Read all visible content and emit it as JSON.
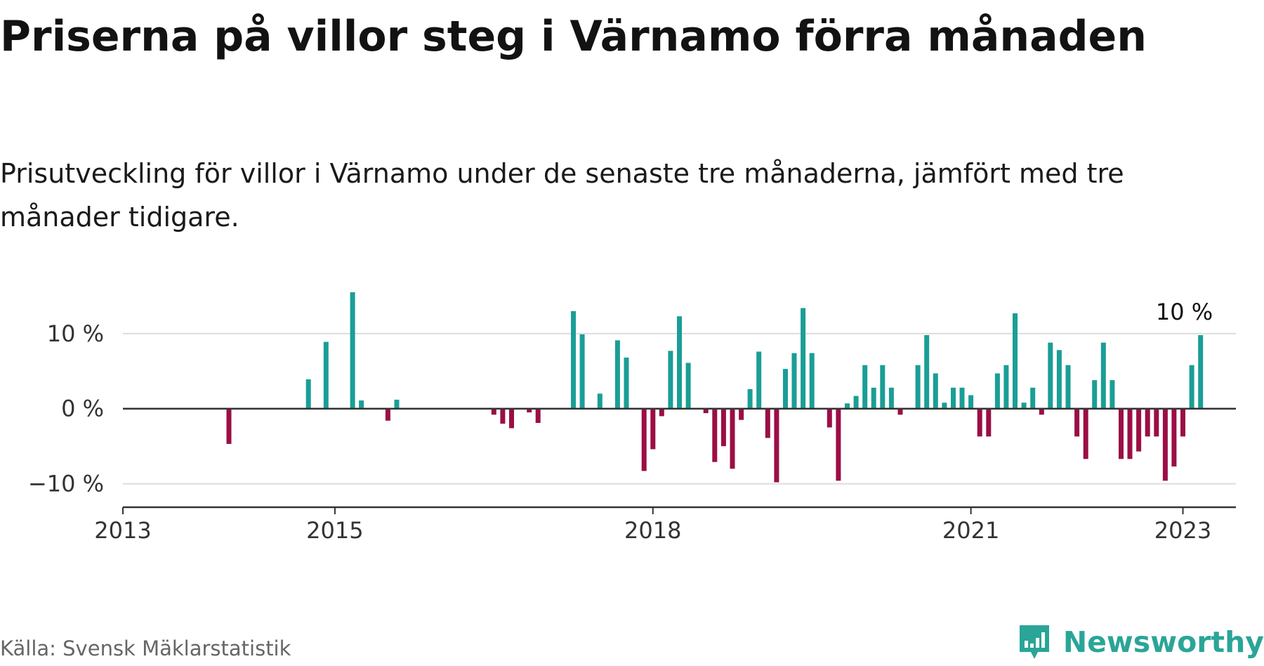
{
  "title": "Priserna på villor steg i Värnamo förra månaden",
  "subtitle": "Prisutveckling för villor i Värnamo under de senaste tre månaderna, jämfört med tre månader tidigare.",
  "source": "Källa: Svensk Mäklarstatistik",
  "brand": {
    "name": "Newsworthy",
    "icon": "newsworthy-logo-icon",
    "color": "#2aa598"
  },
  "colors": {
    "positive": "#1a9e96",
    "negative": "#9b0e45",
    "grid": "#dddddd",
    "zero_line": "#333333",
    "axis": "#333333"
  },
  "chart_data": {
    "type": "bar",
    "title": "Priserna på villor steg i Värnamo förra månaden",
    "xlabel": "",
    "ylabel": "",
    "ylim": [
      -12,
      17
    ],
    "xlim": [
      "2013-01",
      "2023-07"
    ],
    "grid": true,
    "y_ticks": [
      {
        "value": 10,
        "label": "10 %"
      },
      {
        "value": 0,
        "label": "0 %"
      },
      {
        "value": -10,
        "label": "−10 %"
      }
    ],
    "x_ticks": [
      {
        "date": "2013-01",
        "label": "2013"
      },
      {
        "date": "2015-01",
        "label": "2015"
      },
      {
        "date": "2018-01",
        "label": "2018"
      },
      {
        "date": "2021-01",
        "label": "2021"
      },
      {
        "date": "2023-01",
        "label": "2023"
      }
    ],
    "annotation": {
      "date": "2023-01",
      "label": "10 %"
    },
    "series": [
      {
        "values": [
          {
            "date": "2014-01",
            "value": -4.7
          },
          {
            "date": "2014-10",
            "value": 3.9
          },
          {
            "date": "2014-12",
            "value": 8.9
          },
          {
            "date": "2015-03",
            "value": 15.5
          },
          {
            "date": "2015-04",
            "value": 1.1
          },
          {
            "date": "2015-07",
            "value": -1.6
          },
          {
            "date": "2015-08",
            "value": 1.2
          },
          {
            "date": "2016-07",
            "value": -0.8
          },
          {
            "date": "2016-08",
            "value": -2.0
          },
          {
            "date": "2016-09",
            "value": -2.6
          },
          {
            "date": "2016-11",
            "value": -0.5
          },
          {
            "date": "2016-12",
            "value": -1.9
          },
          {
            "date": "2017-04",
            "value": 13.0
          },
          {
            "date": "2017-05",
            "value": 9.9
          },
          {
            "date": "2017-07",
            "value": 2.0
          },
          {
            "date": "2017-09",
            "value": 9.1
          },
          {
            "date": "2017-10",
            "value": 6.8
          },
          {
            "date": "2017-12",
            "value": -8.3
          },
          {
            "date": "2018-01",
            "value": -5.4
          },
          {
            "date": "2018-02",
            "value": -1.0
          },
          {
            "date": "2018-03",
            "value": 7.7
          },
          {
            "date": "2018-04",
            "value": 12.3
          },
          {
            "date": "2018-05",
            "value": 6.1
          },
          {
            "date": "2018-07",
            "value": -0.6
          },
          {
            "date": "2018-08",
            "value": -7.1
          },
          {
            "date": "2018-09",
            "value": -5.0
          },
          {
            "date": "2018-10",
            "value": -8.0
          },
          {
            "date": "2018-11",
            "value": -1.5
          },
          {
            "date": "2018-12",
            "value": 2.6
          },
          {
            "date": "2019-01",
            "value": 7.6
          },
          {
            "date": "2019-02",
            "value": -3.9
          },
          {
            "date": "2019-03",
            "value": -9.8
          },
          {
            "date": "2019-04",
            "value": 5.3
          },
          {
            "date": "2019-05",
            "value": 7.4
          },
          {
            "date": "2019-06",
            "value": 13.4
          },
          {
            "date": "2019-07",
            "value": 7.4
          },
          {
            "date": "2019-09",
            "value": -2.5
          },
          {
            "date": "2019-10",
            "value": -9.6
          },
          {
            "date": "2019-11",
            "value": 0.7
          },
          {
            "date": "2019-12",
            "value": 1.7
          },
          {
            "date": "2020-01",
            "value": 5.8
          },
          {
            "date": "2020-02",
            "value": 2.8
          },
          {
            "date": "2020-03",
            "value": 5.8
          },
          {
            "date": "2020-04",
            "value": 2.8
          },
          {
            "date": "2020-05",
            "value": -0.8
          },
          {
            "date": "2020-07",
            "value": 5.8
          },
          {
            "date": "2020-08",
            "value": 9.8
          },
          {
            "date": "2020-09",
            "value": 4.7
          },
          {
            "date": "2020-10",
            "value": 0.8
          },
          {
            "date": "2020-11",
            "value": 2.8
          },
          {
            "date": "2020-12",
            "value": 2.8
          },
          {
            "date": "2021-01",
            "value": 1.8
          },
          {
            "date": "2021-02",
            "value": -3.7
          },
          {
            "date": "2021-03",
            "value": -3.7
          },
          {
            "date": "2021-04",
            "value": 4.7
          },
          {
            "date": "2021-05",
            "value": 5.8
          },
          {
            "date": "2021-06",
            "value": 12.7
          },
          {
            "date": "2021-07",
            "value": 0.8
          },
          {
            "date": "2021-08",
            "value": 2.8
          },
          {
            "date": "2021-09",
            "value": -0.8
          },
          {
            "date": "2021-10",
            "value": 8.8
          },
          {
            "date": "2021-11",
            "value": 7.8
          },
          {
            "date": "2021-12",
            "value": 5.8
          },
          {
            "date": "2022-01",
            "value": -3.7
          },
          {
            "date": "2022-02",
            "value": -6.7
          },
          {
            "date": "2022-03",
            "value": 3.8
          },
          {
            "date": "2022-04",
            "value": 8.8
          },
          {
            "date": "2022-05",
            "value": 3.8
          },
          {
            "date": "2022-06",
            "value": -6.7
          },
          {
            "date": "2022-07",
            "value": -6.7
          },
          {
            "date": "2022-08",
            "value": -5.7
          },
          {
            "date": "2022-09",
            "value": -3.7
          },
          {
            "date": "2022-10",
            "value": -3.7
          },
          {
            "date": "2022-11",
            "value": -9.6
          },
          {
            "date": "2022-12",
            "value": -7.7
          },
          {
            "date": "2023-01",
            "value": -3.7
          },
          {
            "date": "2023-02",
            "value": 5.8
          },
          {
            "date": "2023-03",
            "value": 9.8
          }
        ]
      }
    ]
  }
}
